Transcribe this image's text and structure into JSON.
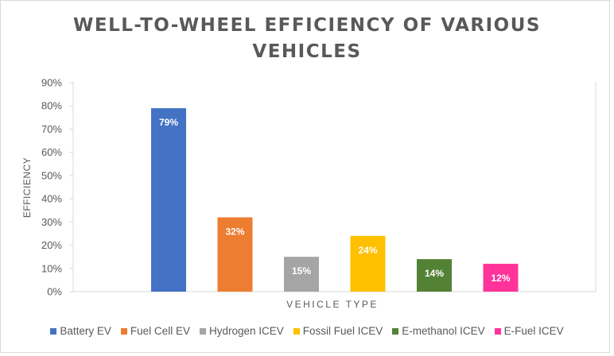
{
  "chart_data": {
    "type": "bar",
    "title_lines": [
      "WELL-TO-WHEEL EFFICIENCY OF VARIOUS",
      "VEHICLES"
    ],
    "title": "WELL-TO-WHEEL EFFICIENCY OF VARIOUS VEHICLES",
    "xlabel": "VEHICLE TYPE",
    "ylabel": "EFFICIENCY",
    "ylim": [
      0,
      90
    ],
    "yticks": [
      0,
      10,
      20,
      30,
      40,
      50,
      60,
      70,
      80,
      90
    ],
    "ytick_labels": [
      "0%",
      "10%",
      "20%",
      "30%",
      "40%",
      "50%",
      "60%",
      "70%",
      "80%",
      "90%"
    ],
    "grid": false,
    "legend_position": "bottom",
    "series": [
      {
        "name": "Battery EV",
        "value": 79,
        "label": "79%",
        "color": "#4472C4"
      },
      {
        "name": "Fuel Cell EV",
        "value": 32,
        "label": "32%",
        "color": "#ED7D31"
      },
      {
        "name": "Hydrogen ICEV",
        "value": 15,
        "label": "15%",
        "color": "#A5A5A5"
      },
      {
        "name": "Fossil Fuel ICEV",
        "value": 24,
        "label": "24%",
        "color": "#FFC000"
      },
      {
        "name": "E-methanol ICEV",
        "value": 14,
        "label": "14%",
        "color": "#548235"
      },
      {
        "name": "E-Fuel ICEV",
        "value": 12,
        "label": "12%",
        "color": "#FF3399"
      }
    ]
  }
}
